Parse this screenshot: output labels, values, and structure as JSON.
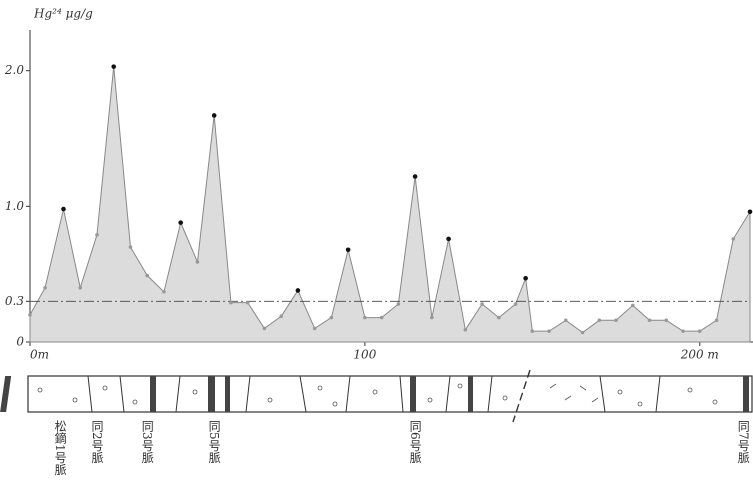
{
  "chart_data": {
    "type": "area",
    "y_label": "Hg²⁴ μg/g",
    "x": [
      0,
      4.5,
      10,
      15,
      20,
      25,
      30,
      35,
      40,
      45,
      50,
      55,
      60,
      65,
      70,
      75,
      80,
      85,
      90,
      95,
      100,
      105,
      110,
      115,
      120,
      125,
      130,
      135,
      140,
      145,
      148,
      150,
      155,
      160,
      165,
      170,
      175,
      180,
      185,
      190,
      195,
      200,
      205,
      210,
      215
    ],
    "values": [
      0.2,
      0.4,
      0.98,
      0.4,
      0.79,
      2.03,
      0.7,
      0.49,
      0.37,
      0.88,
      0.59,
      1.67,
      0.29,
      0.29,
      0.1,
      0.19,
      0.38,
      0.1,
      0.18,
      0.68,
      0.18,
      0.18,
      0.28,
      1.22,
      0.18,
      0.76,
      0.09,
      0.28,
      0.18,
      0.28,
      0.47,
      0.08,
      0.08,
      0.16,
      0.07,
      0.16,
      0.16,
      0.27,
      0.16,
      0.16,
      0.08,
      0.08,
      0.16,
      0.76,
      0.96
    ],
    "color": "#dcdcdc",
    "xlim": [
      0,
      215
    ],
    "ylim": [
      0,
      2.3
    ],
    "xticks": [
      {
        "value": 0,
        "label": "0m"
      },
      100,
      {
        "value": 200,
        "label": "200 m"
      }
    ],
    "yticks": [
      0,
      0.3,
      {
        "value": 1,
        "label": "1.0"
      },
      {
        "value": 2,
        "label": "2.0"
      }
    ],
    "reference_line": 0.3,
    "veins": [
      {
        "label": "松鏑1号脈",
        "x": 9
      },
      {
        "label": "同2号脈",
        "x": 20
      },
      {
        "label": "同3号脈",
        "x": 35
      },
      {
        "label": "同5号脈",
        "x": 55
      },
      {
        "label": "同6号脈",
        "x": 115
      },
      {
        "label": "同7号脈",
        "x": 213
      }
    ]
  }
}
